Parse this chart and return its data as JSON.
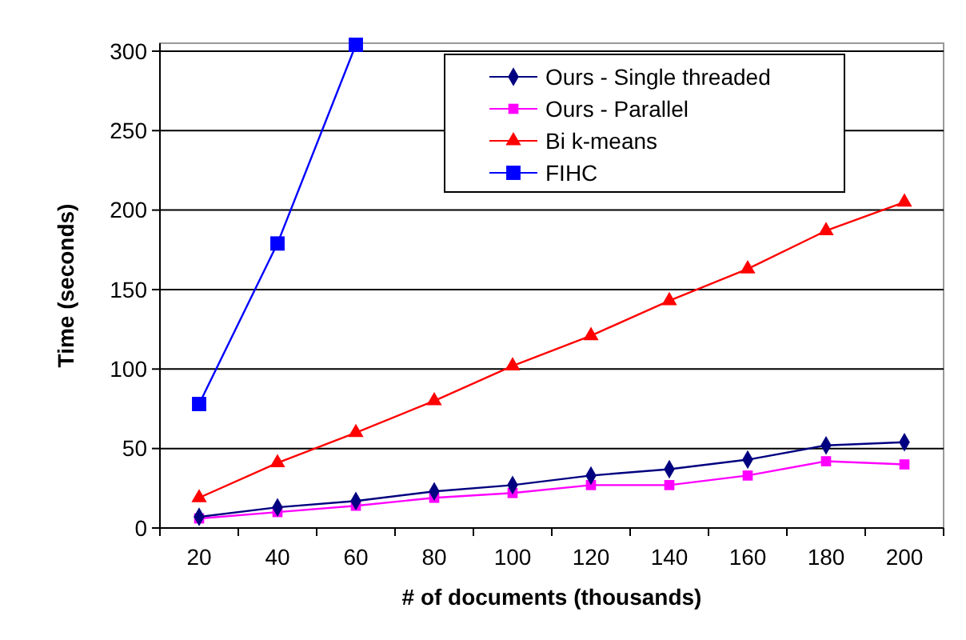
{
  "chart_data": {
    "type": "line",
    "xlabel": "# of documents (thousands)",
    "ylabel": "Time (seconds)",
    "categories": [
      "20",
      "40",
      "60",
      "80",
      "100",
      "120",
      "140",
      "160",
      "180",
      "200"
    ],
    "ylim": [
      0,
      305
    ],
    "yticks": [
      0,
      50,
      100,
      150,
      200,
      250,
      300
    ],
    "grid": "y",
    "legend": "top right",
    "series": [
      {
        "name": "Ours - Single threaded",
        "color": "#000080",
        "marker": "diamond",
        "values": [
          7,
          13,
          17,
          23,
          27,
          33,
          37,
          43,
          52,
          54
        ]
      },
      {
        "name": "Ours - Parallel",
        "color": "#ff00ff",
        "marker": "square",
        "values": [
          6,
          10,
          14,
          19,
          22,
          27,
          27,
          33,
          42,
          40
        ]
      },
      {
        "name": "Bi k-means",
        "color": "#ff0000",
        "marker": "triangle",
        "values": [
          19,
          41,
          60,
          80,
          102,
          121,
          143,
          163,
          187,
          205
        ]
      },
      {
        "name": "FIHC",
        "color": "#0000ff",
        "marker": "square",
        "values": [
          78,
          179,
          304,
          null,
          null,
          null,
          null,
          null,
          null,
          null
        ]
      }
    ]
  }
}
